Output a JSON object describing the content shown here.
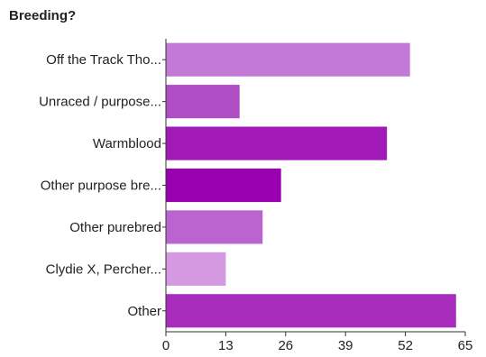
{
  "chart_data": {
    "type": "bar",
    "orientation": "horizontal",
    "title": "Breeding?",
    "categories": [
      "Off the Track Tho...",
      "Unraced / purpose...",
      "Warmblood",
      "Other purpose bre...",
      "Other purebred",
      "Clydie X, Percher...",
      "Other"
    ],
    "values": [
      53,
      16,
      48,
      25,
      21,
      13,
      63
    ],
    "colors": [
      "#c27ad6",
      "#b04ec6",
      "#a11ab8",
      "#9900b0",
      "#b964cf",
      "#d599e1",
      "#a82dbd"
    ],
    "xlim": [
      0,
      65
    ],
    "xticks": [
      "0",
      "13",
      "26",
      "39",
      "52",
      "65"
    ],
    "grid": false,
    "legend": "none"
  }
}
